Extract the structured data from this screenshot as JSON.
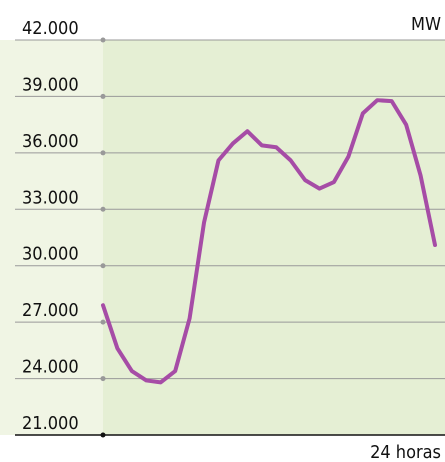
{
  "chart_data": {
    "type": "line",
    "unit_label": "MW",
    "x_label": "24 horas",
    "categories": [
      null,
      null,
      null,
      null,
      null,
      null,
      null,
      null,
      null,
      null,
      null,
      null,
      null,
      null,
      null,
      null,
      null,
      null,
      null,
      null,
      null,
      null,
      null,
      null
    ],
    "series": [
      {
        "name": null,
        "color": "#a64ca6",
        "values": [
          27900,
          25600,
          24400,
          23900,
          23800,
          24400,
          27200,
          32300,
          35600,
          36500,
          37150,
          36400,
          36300,
          35600,
          34550,
          34100,
          34450,
          35800,
          38100,
          38800,
          38750,
          37500,
          34800,
          31100
        ]
      }
    ],
    "ylim": [
      21000,
      42000
    ],
    "yticks": [
      {
        "value": 21000,
        "label": "21.000"
      },
      {
        "value": 24000,
        "label": "24.000"
      },
      {
        "value": 27000,
        "label": "27.000"
      },
      {
        "value": 30000,
        "label": "30.000"
      },
      {
        "value": 33000,
        "label": "33.000"
      },
      {
        "value": 36000,
        "label": "36.000"
      },
      {
        "value": 39000,
        "label": "39.000"
      },
      {
        "value": 42000,
        "label": "42.000"
      }
    ],
    "grid": true
  }
}
